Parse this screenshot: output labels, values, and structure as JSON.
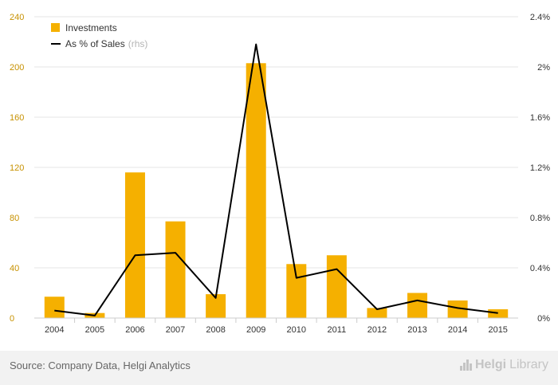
{
  "chart_data": {
    "type": "bar",
    "categories": [
      "2004",
      "2005",
      "2006",
      "2007",
      "2008",
      "2009",
      "2010",
      "2011",
      "2012",
      "2013",
      "2014",
      "2015"
    ],
    "series": [
      {
        "name": "Investments",
        "type": "bar",
        "axis": "left",
        "values": [
          17,
          4,
          116,
          77,
          19,
          203,
          43,
          50,
          8,
          20,
          14,
          7
        ],
        "color": "#f5b000"
      },
      {
        "name": "As % of Sales",
        "name_suffix": "(rhs)",
        "type": "line",
        "axis": "right",
        "values": [
          0.06,
          0.02,
          0.5,
          0.52,
          0.16,
          2.18,
          0.32,
          0.39,
          0.07,
          0.14,
          0.08,
          0.04
        ],
        "color": "#000000"
      }
    ],
    "ylim_left": [
      0,
      240
    ],
    "yticks_left": [
      "0",
      "40",
      "80",
      "120",
      "160",
      "200",
      "240"
    ],
    "ylim_right": [
      0,
      2.4
    ],
    "yticks_right": [
      "0%",
      "0.4%",
      "0.8%",
      "1.2%",
      "1.6%",
      "2%",
      "2.4%"
    ],
    "grid": true,
    "legend_position": "top-left"
  },
  "footer": {
    "source": "Source: Company Data, Helgi Analytics",
    "logo_main": "Helgi",
    "logo_suffix": "Library"
  },
  "colors": {
    "bar": "#f5b000",
    "line": "#000000",
    "grid": "#e6e6e6",
    "left_tick": "#c79100",
    "text": "#333333"
  }
}
